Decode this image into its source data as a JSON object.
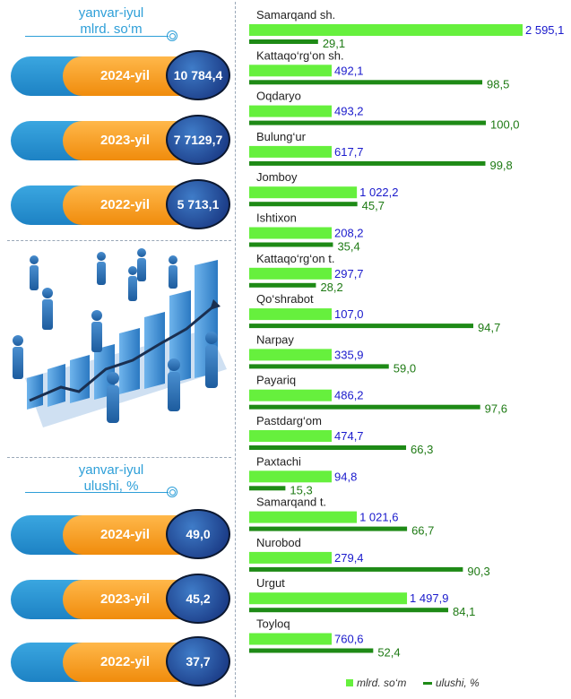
{
  "left_panel": {
    "top_header": {
      "line1": "yanvar-iyul",
      "line2": "mlrd. so‘m"
    },
    "top_pills": [
      {
        "year": "2024-yil",
        "value": "10 784,4"
      },
      {
        "year": "2023-yil",
        "value": "7 7129,7"
      },
      {
        "year": "2022-yil",
        "value": "5 713,1"
      }
    ],
    "bottom_header": {
      "line1": "yanvar-iyul",
      "line2": "ulushi, %"
    },
    "bottom_pills": [
      {
        "year": "2024-yil",
        "value": "49,0"
      },
      {
        "year": "2023-yil",
        "value": "45,2"
      },
      {
        "year": "2022-yil",
        "value": "37,7"
      }
    ],
    "illustration_icon": "business-growth-bar-chart-illustration"
  },
  "colors": {
    "bar_light": "#66f03d",
    "bar_dark": "#1e8a16",
    "value_blue": "#1a1acc",
    "value_green": "#1e7a14",
    "accent_blue": "#2e9fd8",
    "pill_orange": "#f39a1f"
  },
  "chart_data": {
    "type": "bar",
    "orientation": "horizontal",
    "categories": [
      "Samarqand sh.",
      "Kattaqo‘rg‘on sh.",
      "Oqdaryo",
      "Bulung‘ur",
      "Jomboy",
      "Ishtixon",
      "Kattaqo‘rg‘on t.",
      "Qo‘shrabot",
      "Narpay",
      "Payariq",
      "Pastdarg‘om",
      "Paxtachi",
      "Samarqand t.",
      "Nurobod",
      "Urgut",
      "Toyloq"
    ],
    "series": [
      {
        "name": "mlrd. so‘m",
        "values": [
          2595.1,
          492.1,
          493.2,
          617.7,
          1022.2,
          208.2,
          297.7,
          107.0,
          335.9,
          486.2,
          474.7,
          94.8,
          1021.6,
          279.4,
          1497.9,
          760.6
        ],
        "labels": [
          "2 595,1",
          "492,1",
          "493,2",
          "617,7",
          "1 022,2",
          "208,2",
          "297,7",
          "107,0",
          "335,9",
          "486,2",
          "474,7",
          "94,8",
          "1 021,6",
          "279,4",
          "1 497,9",
          "760,6"
        ]
      },
      {
        "name": "ulushi, %",
        "values": [
          29.1,
          98.5,
          100.0,
          99.8,
          45.7,
          35.4,
          28.2,
          94.7,
          59.0,
          97.6,
          66.3,
          15.3,
          66.7,
          90.3,
          84.1,
          52.4
        ],
        "labels": [
          "29,1",
          "98,5",
          "100,0",
          "99,8",
          "45,7",
          "35,4",
          "28,2",
          "94,7",
          "59,0",
          "97,6",
          "66,3",
          "15,3",
          "66,7",
          "90,3",
          "84,1",
          "52,4"
        ]
      }
    ],
    "legend": [
      "mlrd. so‘m",
      "ulushi, %"
    ],
    "legend_position": "bottom-right",
    "grid": false
  }
}
